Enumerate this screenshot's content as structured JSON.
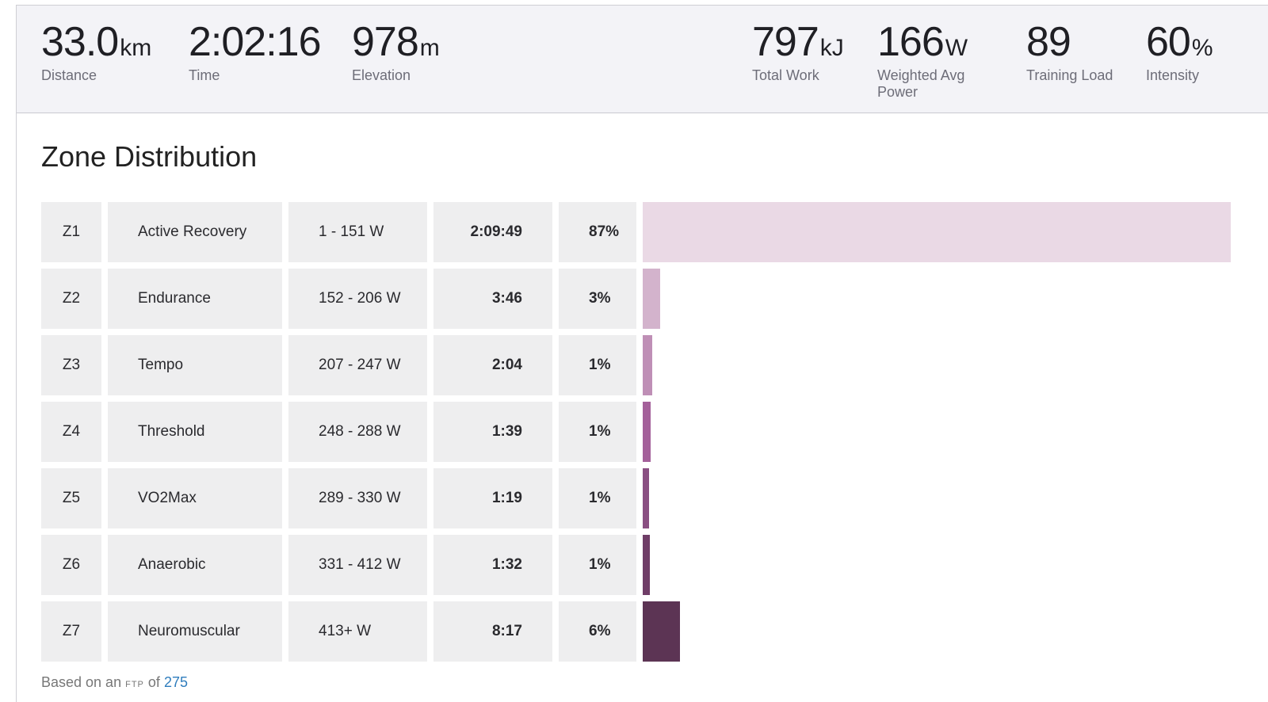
{
  "stats": {
    "distance": {
      "value": "33.0",
      "unit": "km",
      "label": "Distance"
    },
    "time": {
      "value": "2:02:16",
      "unit": "",
      "label": "Time"
    },
    "elevation": {
      "value": "978",
      "unit": "m",
      "label": "Elevation"
    },
    "total_work": {
      "value": "797",
      "unit": "kJ",
      "label": "Total Work"
    },
    "weighted_avg_power": {
      "value": "166",
      "unit": "W",
      "label": "Weighted Avg Power"
    },
    "training_load": {
      "value": "89",
      "unit": "",
      "label": "Training Load"
    },
    "intensity": {
      "value": "60",
      "unit": "%",
      "label": "Intensity"
    }
  },
  "zone_section": {
    "title": "Zone Distribution",
    "zones": [
      {
        "zone": "Z1",
        "name": "Active Recovery",
        "range": "1 - 151 W",
        "time": "2:09:49",
        "percent": "87%",
        "fraction": 1.0,
        "color": "#ead9e5"
      },
      {
        "zone": "Z2",
        "name": "Endurance",
        "range": "152 - 206 W",
        "time": "3:46",
        "percent": "3%",
        "fraction": 0.029,
        "color": "#d3b3cc"
      },
      {
        "zone": "Z3",
        "name": "Tempo",
        "range": "207 - 247 W",
        "time": "2:04",
        "percent": "1%",
        "fraction": 0.016,
        "color": "#bf8fb6"
      },
      {
        "zone": "Z4",
        "name": "Threshold",
        "range": "248 - 288 W",
        "time": "1:39",
        "percent": "1%",
        "fraction": 0.013,
        "color": "#a4609a"
      },
      {
        "zone": "Z5",
        "name": "VO2Max",
        "range": "289 - 330 W",
        "time": "1:19",
        "percent": "1%",
        "fraction": 0.01,
        "color": "#8a4f82"
      },
      {
        "zone": "Z6",
        "name": "Anaerobic",
        "range": "331 - 412 W",
        "time": "1:32",
        "percent": "1%",
        "fraction": 0.012,
        "color": "#6f3d67"
      },
      {
        "zone": "Z7",
        "name": "Neuromuscular",
        "range": "413+ W",
        "time": "8:17",
        "percent": "6%",
        "fraction": 0.063,
        "color": "#5c3454"
      }
    ]
  },
  "footnote": {
    "prefix": "Based on an",
    "abbr": "FTP",
    "middle": "of",
    "ftp_value": "275"
  }
}
